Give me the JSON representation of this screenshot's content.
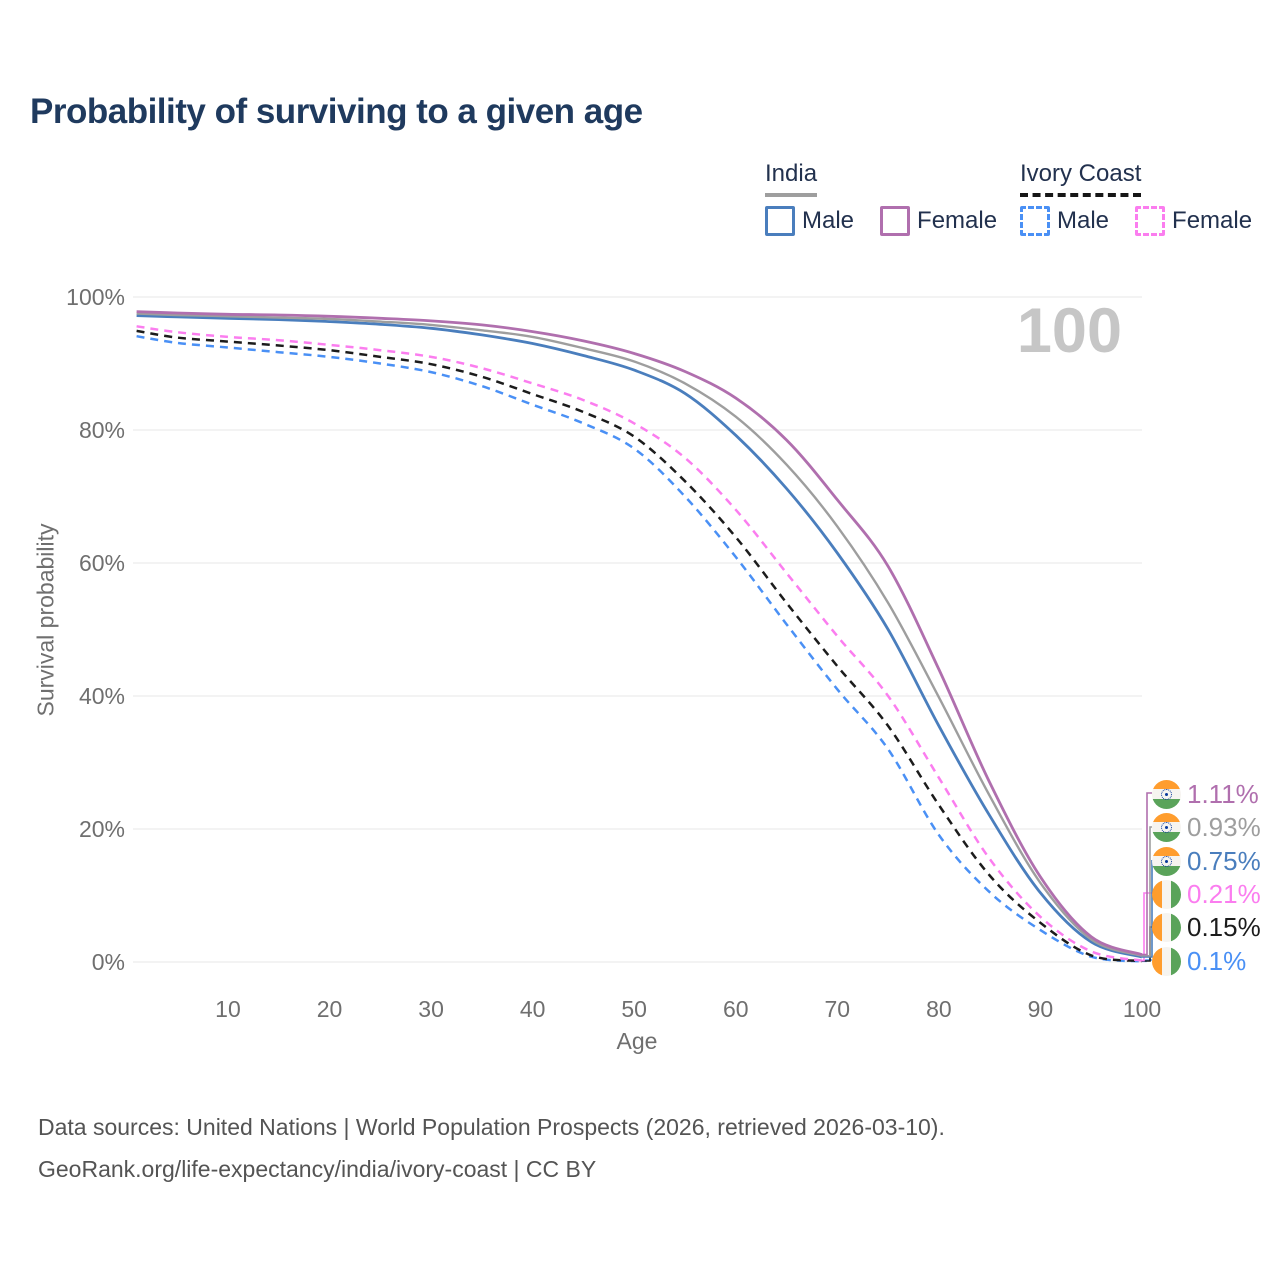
{
  "title": "Probability of surviving to a given age",
  "watermark_age": "100",
  "legend": {
    "groups": [
      {
        "label": "India",
        "line_style": "solid",
        "items": [
          {
            "label": "Male",
            "key": "india_male"
          },
          {
            "label": "Female",
            "key": "india_female"
          }
        ]
      },
      {
        "label": "Ivory Coast",
        "line_style": "dashed",
        "items": [
          {
            "label": "Male",
            "key": "ivory_coast_male"
          },
          {
            "label": "Female",
            "key": "ivory_coast_female"
          }
        ]
      }
    ]
  },
  "colors": {
    "india_male": "#4a7ebd",
    "india_female": "#b06fae",
    "india_total": "#9e9e9e",
    "ivory_coast_male": "#4a90f5",
    "ivory_coast_female": "#fb7def",
    "ivory_coast_total": "#1c1c1c",
    "grid": "#ececec",
    "axis_text": "#6f6f6f",
    "title_text": "#1f3a5e",
    "watermark": "#c6c6c6"
  },
  "axes": {
    "y_title": "Survival probability",
    "x_title": "Age",
    "y_ticks": [
      "0%",
      "20%",
      "40%",
      "60%",
      "80%",
      "100%"
    ],
    "y_tick_values": [
      0,
      20,
      40,
      60,
      80,
      100
    ],
    "x_ticks": [
      "10",
      "20",
      "30",
      "40",
      "50",
      "60",
      "70",
      "80",
      "90",
      "100"
    ],
    "x_tick_values": [
      10,
      20,
      30,
      40,
      50,
      60,
      70,
      80,
      90,
      100
    ]
  },
  "end_labels": [
    {
      "text": "1.11%",
      "series": "india_female",
      "flag": "india"
    },
    {
      "text": "0.93%",
      "series": "india_total",
      "flag": "india"
    },
    {
      "text": "0.75%",
      "series": "india_male",
      "flag": "india"
    },
    {
      "text": "0.21%",
      "series": "ivory_coast_female",
      "flag": "ivory-coast"
    },
    {
      "text": "0.15%",
      "series": "ivory_coast_total",
      "flag": "ivory-coast"
    },
    {
      "text": "0.1%",
      "series": "ivory_coast_male",
      "flag": "ivory-coast"
    }
  ],
  "footer": {
    "line1": "Data sources: United Nations | World Population Prospects (2026, retrieved 2026-03-10).",
    "line2": "GeoRank.org/life-expectancy/india/ivory-coast | CC BY"
  },
  "chart_data": {
    "type": "line",
    "title": "Probability of surviving to a given age",
    "xlabel": "Age",
    "ylabel": "Survival probability",
    "xlim": [
      0,
      100
    ],
    "ylim": [
      0,
      100
    ],
    "y_unit": "%",
    "grid": "horizontal",
    "legend_position": "top-right",
    "x": [
      1,
      5,
      10,
      15,
      20,
      25,
      30,
      35,
      40,
      45,
      50,
      55,
      60,
      65,
      70,
      75,
      80,
      85,
      90,
      95,
      100
    ],
    "series": [
      {
        "name": "Ivory Coast Male",
        "key": "ivory_coast_male",
        "dashed": true,
        "values": [
          94.1,
          93.1,
          92.4,
          91.7,
          91.0,
          90.0,
          88.7,
          86.6,
          83.8,
          81.0,
          77.2,
          70.0,
          60.9,
          50.8,
          41.0,
          32.0,
          19.1,
          10.5,
          4.8,
          0.8,
          0.1
        ]
      },
      {
        "name": "Ivory Coast Both sexes",
        "key": "ivory_coast_total",
        "dashed": true,
        "values": [
          94.9,
          93.9,
          93.3,
          92.7,
          92.0,
          91.0,
          89.9,
          88.0,
          85.4,
          82.7,
          79.0,
          72.3,
          63.9,
          54.0,
          44.5,
          35.5,
          23.6,
          13.0,
          5.9,
          1.0,
          0.15
        ]
      },
      {
        "name": "Ivory Coast Female",
        "key": "ivory_coast_female",
        "dashed": true,
        "values": [
          95.6,
          94.7,
          94.0,
          93.5,
          92.8,
          92.0,
          91.0,
          89.3,
          87.0,
          84.5,
          81.0,
          75.8,
          68.0,
          58.5,
          49.0,
          40.0,
          27.7,
          15.5,
          6.8,
          1.6,
          0.21
        ]
      },
      {
        "name": "India Male",
        "key": "india_male",
        "dashed": false,
        "values": [
          97.2,
          97.0,
          96.8,
          96.6,
          96.3,
          95.9,
          95.3,
          94.3,
          93.0,
          91.2,
          89.0,
          85.5,
          79.2,
          71.2,
          61.5,
          50.0,
          35.5,
          22.0,
          10.4,
          3.0,
          0.75
        ]
      },
      {
        "name": "India Both sexes",
        "key": "india_total",
        "dashed": false,
        "values": [
          97.5,
          97.3,
          97.1,
          96.9,
          96.7,
          96.3,
          95.8,
          95.0,
          94.0,
          92.3,
          90.3,
          87.0,
          82.0,
          74.8,
          65.5,
          54.0,
          39.8,
          25.0,
          11.9,
          3.4,
          0.93
        ]
      },
      {
        "name": "India Female",
        "key": "india_female",
        "dashed": false,
        "values": [
          97.8,
          97.6,
          97.4,
          97.3,
          97.1,
          96.8,
          96.4,
          95.8,
          94.8,
          93.4,
          91.5,
          88.8,
          84.8,
          78.5,
          69.5,
          59.5,
          44.0,
          27.0,
          12.8,
          3.8,
          1.11
        ]
      }
    ]
  }
}
